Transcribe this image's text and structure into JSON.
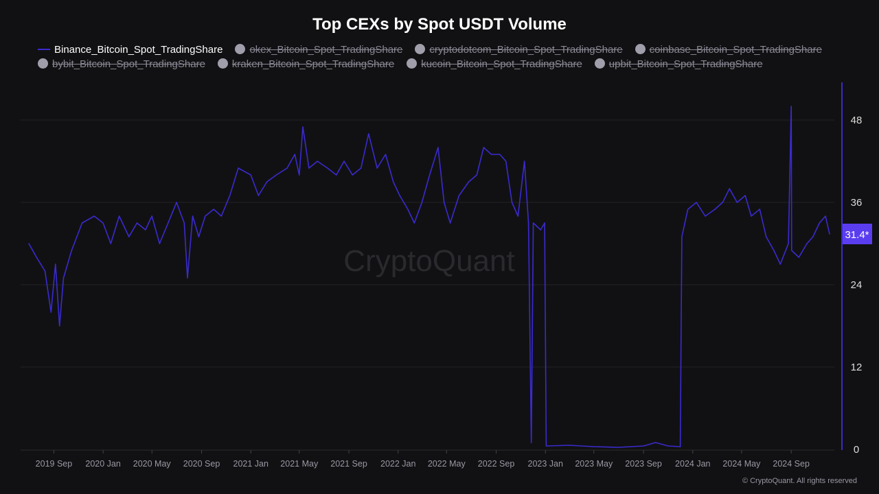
{
  "chart_data": {
    "type": "line",
    "title": "Top CEXs by Spot USDT Volume",
    "legend": [
      {
        "name": "Binance_Bitcoin_Spot_TradingShare",
        "active": true
      },
      {
        "name": "okex_Bitcoin_Spot_TradingShare",
        "active": false
      },
      {
        "name": "cryptodotcom_Bitcoin_Spot_TradingShare",
        "active": false
      },
      {
        "name": "coinbase_Bitcoin_Spot_TradingShare",
        "active": false
      },
      {
        "name": "bybit_Bitcoin_Spot_TradingShare",
        "active": false
      },
      {
        "name": "kraken_Bitcoin_Spot_TradingShare",
        "active": false
      },
      {
        "name": "kucoin_Bitcoin_Spot_TradingShare",
        "active": false
      },
      {
        "name": "upbit_Bitcoin_Spot_TradingShare",
        "active": false
      }
    ],
    "legend_placement": "top",
    "series_color": "#3a2bd0",
    "ylim": [
      0,
      52
    ],
    "y_ticks": [
      0,
      12,
      24,
      36,
      48
    ],
    "y_axis_side": "right",
    "x_ticks": [
      "2019 Sep",
      "2020 Jan",
      "2020 May",
      "2020 Sep",
      "2021 Jan",
      "2021 May",
      "2021 Sep",
      "2022 Jan",
      "2022 May",
      "2022 Sep",
      "2023 Jan",
      "2023 May",
      "2023 Sep",
      "2024 Jan",
      "2024 May",
      "2024 Sep"
    ],
    "x_tick_dates": [
      "2019-09-01",
      "2020-01-01",
      "2020-05-01",
      "2020-09-01",
      "2021-01-01",
      "2021-05-01",
      "2021-09-01",
      "2022-01-01",
      "2022-05-01",
      "2022-09-01",
      "2023-01-01",
      "2023-05-01",
      "2023-09-01",
      "2024-01-01",
      "2024-05-01",
      "2024-09-01"
    ],
    "xlim": [
      "2019-07-01",
      "2024-12-05"
    ],
    "grid": true,
    "current_value_label": "31.4*",
    "watermark": "CryptoQuant",
    "copyright": "© CryptoQuant. All rights reserved",
    "series": [
      {
        "name": "Binance_Bitcoin_Spot_TradingShare",
        "points": [
          [
            "2019-07-01",
            30
          ],
          [
            "2019-07-20",
            28
          ],
          [
            "2019-08-10",
            26
          ],
          [
            "2019-08-25",
            20
          ],
          [
            "2019-09-05",
            27
          ],
          [
            "2019-09-15",
            18
          ],
          [
            "2019-09-25",
            25
          ],
          [
            "2019-10-15",
            29
          ],
          [
            "2019-11-10",
            33
          ],
          [
            "2019-12-10",
            34
          ],
          [
            "2020-01-01",
            33
          ],
          [
            "2020-01-20",
            30
          ],
          [
            "2020-02-10",
            34
          ],
          [
            "2020-03-05",
            31
          ],
          [
            "2020-03-25",
            33
          ],
          [
            "2020-04-15",
            32
          ],
          [
            "2020-05-01",
            34
          ],
          [
            "2020-05-20",
            30
          ],
          [
            "2020-06-10",
            33
          ],
          [
            "2020-07-01",
            36
          ],
          [
            "2020-07-20",
            33
          ],
          [
            "2020-07-28",
            25
          ],
          [
            "2020-08-10",
            34
          ],
          [
            "2020-08-25",
            31
          ],
          [
            "2020-09-10",
            34
          ],
          [
            "2020-10-01",
            35
          ],
          [
            "2020-10-20",
            34
          ],
          [
            "2020-11-10",
            37
          ],
          [
            "2020-12-01",
            41
          ],
          [
            "2021-01-01",
            40
          ],
          [
            "2021-01-20",
            37
          ],
          [
            "2021-02-10",
            39
          ],
          [
            "2021-03-05",
            40
          ],
          [
            "2021-04-01",
            41
          ],
          [
            "2021-04-20",
            43
          ],
          [
            "2021-05-01",
            40
          ],
          [
            "2021-05-10",
            47
          ],
          [
            "2021-05-25",
            41
          ],
          [
            "2021-06-15",
            42
          ],
          [
            "2021-07-10",
            41
          ],
          [
            "2021-08-01",
            40
          ],
          [
            "2021-08-20",
            42
          ],
          [
            "2021-09-10",
            40
          ],
          [
            "2021-10-01",
            41
          ],
          [
            "2021-10-20",
            46
          ],
          [
            "2021-11-10",
            41
          ],
          [
            "2021-12-01",
            43
          ],
          [
            "2021-12-20",
            39
          ],
          [
            "2022-01-05",
            37
          ],
          [
            "2022-01-25",
            35
          ],
          [
            "2022-02-10",
            33
          ],
          [
            "2022-03-01",
            36
          ],
          [
            "2022-03-20",
            40
          ],
          [
            "2022-04-10",
            44
          ],
          [
            "2022-04-25",
            36
          ],
          [
            "2022-05-10",
            33
          ],
          [
            "2022-06-01",
            37
          ],
          [
            "2022-06-25",
            39
          ],
          [
            "2022-07-15",
            40
          ],
          [
            "2022-08-01",
            44
          ],
          [
            "2022-08-20",
            43
          ],
          [
            "2022-09-10",
            43
          ],
          [
            "2022-09-25",
            42
          ],
          [
            "2022-10-10",
            36
          ],
          [
            "2022-10-25",
            34
          ],
          [
            "2022-11-10",
            42
          ],
          [
            "2022-11-20",
            33
          ],
          [
            "2022-11-27",
            1
          ],
          [
            "2022-12-02",
            33
          ],
          [
            "2022-12-20",
            32
          ],
          [
            "2022-12-30",
            33
          ],
          [
            "2023-01-03",
            0.5
          ],
          [
            "2023-03-01",
            0.6
          ],
          [
            "2023-05-01",
            0.4
          ],
          [
            "2023-07-01",
            0.3
          ],
          [
            "2023-09-01",
            0.5
          ],
          [
            "2023-10-01",
            1
          ],
          [
            "2023-11-01",
            0.5
          ],
          [
            "2023-12-01",
            0.4
          ],
          [
            "2023-12-05",
            31
          ],
          [
            "2023-12-20",
            35
          ],
          [
            "2024-01-10",
            36
          ],
          [
            "2024-02-01",
            34
          ],
          [
            "2024-02-25",
            35
          ],
          [
            "2024-03-15",
            36
          ],
          [
            "2024-04-01",
            38
          ],
          [
            "2024-04-20",
            36
          ],
          [
            "2024-05-10",
            37
          ],
          [
            "2024-05-25",
            34
          ],
          [
            "2024-06-15",
            35
          ],
          [
            "2024-07-01",
            31
          ],
          [
            "2024-07-20",
            29
          ],
          [
            "2024-08-05",
            27
          ],
          [
            "2024-08-25",
            30
          ],
          [
            "2024-09-01",
            50
          ],
          [
            "2024-09-02",
            29
          ],
          [
            "2024-09-20",
            28
          ],
          [
            "2024-10-10",
            30
          ],
          [
            "2024-10-25",
            31
          ],
          [
            "2024-11-10",
            33
          ],
          [
            "2024-11-25",
            34
          ],
          [
            "2024-12-05",
            31.4
          ]
        ]
      }
    ]
  }
}
